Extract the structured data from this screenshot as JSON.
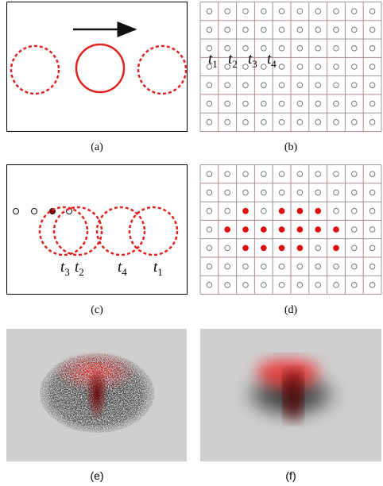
{
  "panels": [
    {
      "caption": "(a)"
    },
    {
      "caption": "(b)",
      "labels": [
        {
          "var": "t",
          "sub": "1"
        },
        {
          "var": "t",
          "sub": "2"
        },
        {
          "var": "t",
          "sub": "3"
        },
        {
          "var": "t",
          "sub": "4"
        }
      ]
    },
    {
      "caption": "(c)",
      "labels": [
        {
          "var": "t",
          "sub": "3"
        },
        {
          "var": "t",
          "sub": "2"
        },
        {
          "var": "t",
          "sub": "4"
        },
        {
          "var": "t",
          "sub": "1"
        }
      ]
    },
    {
      "caption": "(d)"
    },
    {
      "caption": "(e)"
    },
    {
      "caption": "(f)"
    }
  ],
  "grid": {
    "rows": 7,
    "cols": 10
  },
  "highlighted": [
    {
      "row": 2,
      "cols": [
        2,
        4,
        5,
        6
      ]
    },
    {
      "row": 3,
      "cols": [
        1,
        2,
        3,
        4,
        5,
        6,
        7
      ]
    },
    {
      "row": 4,
      "cols": [
        2,
        3,
        4,
        5,
        7
      ]
    }
  ]
}
